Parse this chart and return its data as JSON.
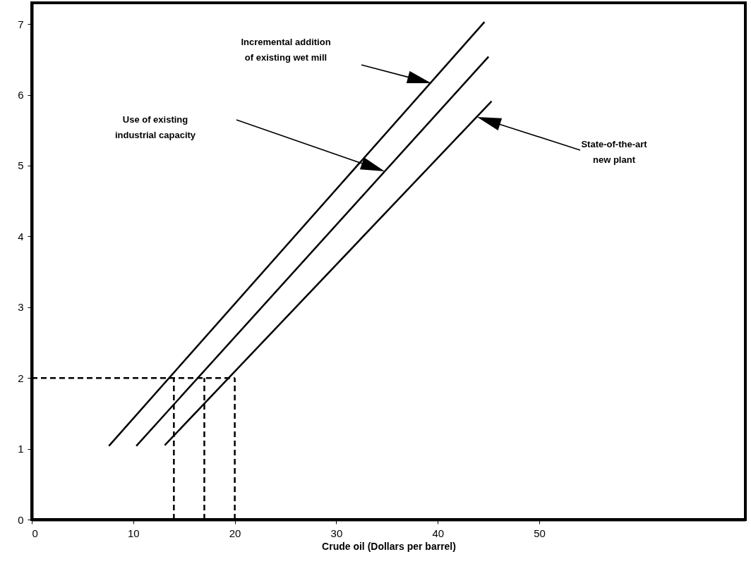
{
  "chart_data": {
    "type": "line",
    "xlabel": "Crude oil (Dollars per barrel)",
    "xlim": [
      0,
      70.3
    ],
    "ylim": [
      0,
      7.3
    ],
    "xticks": [
      0,
      10,
      20,
      30,
      40,
      50
    ],
    "yticks": [
      0,
      1,
      2,
      3,
      4,
      5,
      6,
      7
    ],
    "grid": false,
    "marker": "none",
    "line_style": "solid",
    "series": [
      {
        "color": "#000000",
        "x": [
          7.6,
          44.6
        ],
        "values": [
          1.04,
          7.03
        ]
      },
      {
        "color": "#000000",
        "x": [
          10.3,
          45.0
        ],
        "values": [
          1.04,
          6.54
        ]
      },
      {
        "color": "#000000",
        "x": [
          13.1,
          45.3
        ],
        "values": [
          1.05,
          5.91
        ]
      },
      {
        "color": "#000000",
        "x": [
          0,
          20
        ],
        "values": [
          2,
          2
        ],
        "line_style": "dashed"
      },
      {
        "color": "#000000",
        "x": [
          14,
          14
        ],
        "values": [
          0,
          2
        ],
        "line_style": "dashed"
      },
      {
        "color": "#000000",
        "x": [
          17,
          17
        ],
        "values": [
          0,
          2
        ],
        "line_style": "dashed"
      },
      {
        "color": "#000000",
        "x": [
          20,
          20
        ],
        "values": [
          0,
          2
        ],
        "line_style": "dashed"
      }
    ],
    "annotations": [
      "Incremental addition\nof existing wet mill",
      "Use of existing\nindustrial capacity",
      "State-of-the-art\nnew plant"
    ]
  }
}
